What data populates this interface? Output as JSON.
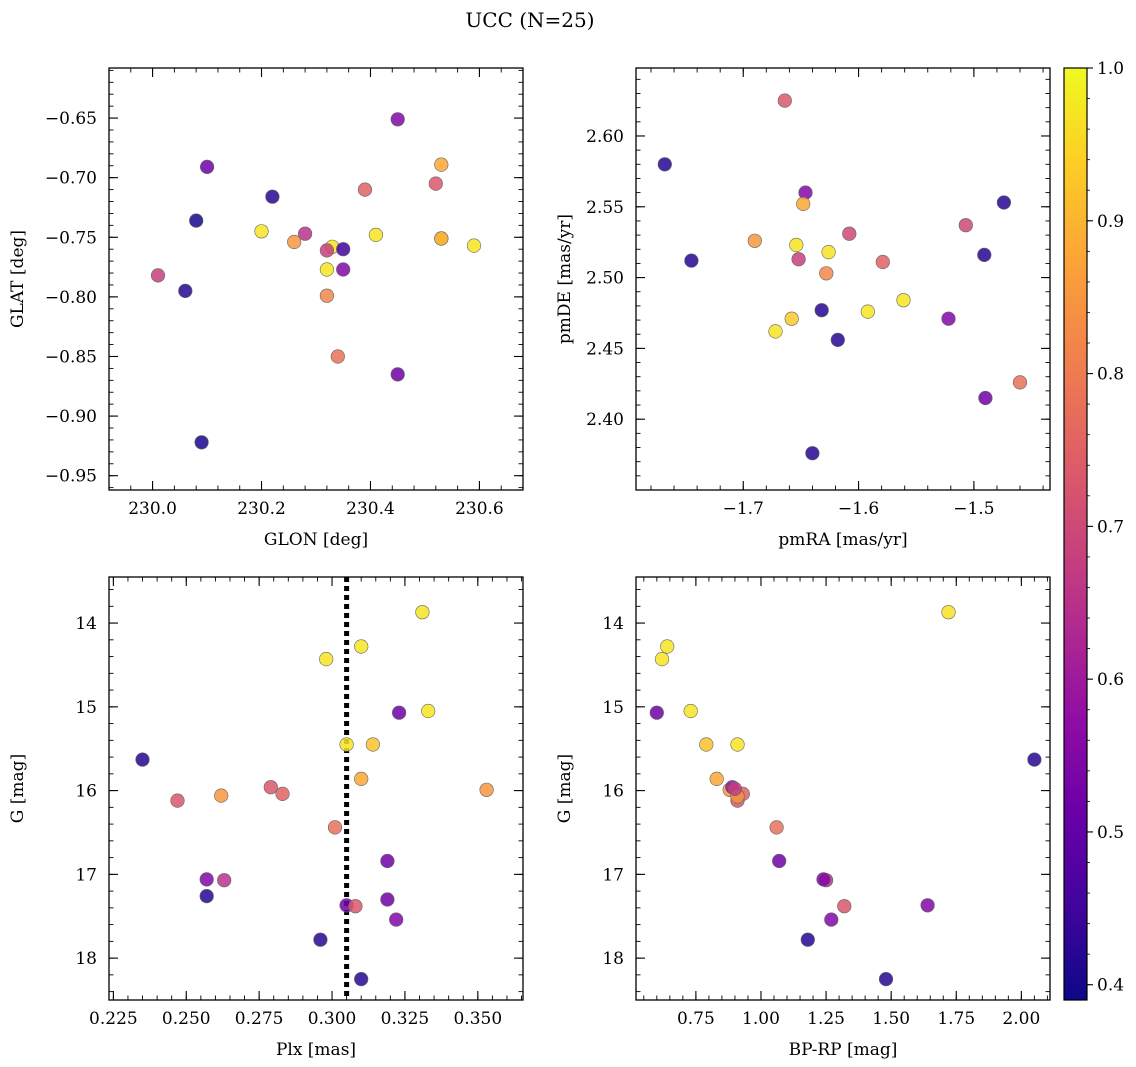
{
  "figure": {
    "title": "UCC (N=25)"
  },
  "colorbar": {
    "cmap": "plasma",
    "range": [
      0.39,
      1.0
    ],
    "ticks": [
      "0.4",
      "0.5",
      "0.6",
      "0.7",
      "0.8",
      "0.9",
      "1.0"
    ],
    "tick_values": [
      0.4,
      0.5,
      0.6,
      0.7,
      0.8,
      0.9,
      1.0
    ]
  },
  "chart_data": [
    {
      "type": "scatter",
      "xlabel": "GLON [deg]",
      "ylabel": "GLAT [deg]",
      "xlim": [
        229.92,
        230.68
      ],
      "ylim": [
        -0.962,
        -0.608
      ],
      "y_inverted": false,
      "xticks": [
        230.0,
        230.2,
        230.4,
        230.6
      ],
      "xticklabels": [
        "230.0",
        "230.2",
        "230.4",
        "230.6"
      ],
      "yticks": [
        -0.65,
        -0.7,
        -0.75,
        -0.8,
        -0.85,
        -0.9,
        -0.95
      ],
      "yticklabels": [
        "−0.65",
        "−0.70",
        "−0.75",
        "−0.80",
        "−0.85",
        "−0.90",
        "−0.95"
      ],
      "x": [
        230.45,
        230.1,
        230.53,
        230.22,
        230.39,
        230.52,
        230.08,
        230.41,
        230.2,
        230.28,
        230.26,
        230.33,
        230.32,
        230.53,
        230.59,
        230.35,
        230.01,
        230.32,
        230.35,
        230.06,
        230.32,
        230.34,
        230.45,
        230.09,
        230.53
      ],
      "y": [
        -0.651,
        -0.691,
        -0.689,
        -0.716,
        -0.71,
        -0.705,
        -0.736,
        -0.748,
        -0.745,
        -0.747,
        -0.754,
        -0.758,
        -0.761,
        -0.751,
        -0.757,
        -0.76,
        -0.782,
        -0.777,
        -0.777,
        -0.795,
        -0.799,
        -0.85,
        -0.865,
        -0.922,
        -0.751
      ],
      "c": [
        0.55,
        0.52,
        0.88,
        0.42,
        0.75,
        0.73,
        0.4,
        0.97,
        0.97,
        0.65,
        0.85,
        0.97,
        0.68,
        0.7,
        0.97,
        0.45,
        0.68,
        0.97,
        0.55,
        0.42,
        0.82,
        0.78,
        0.52,
        0.4,
        0.92
      ]
    },
    {
      "type": "scatter",
      "xlabel": "pmRA [mas/yr]",
      "ylabel": "pmDE [mas/yr]",
      "xlim": [
        -1.793,
        -1.434
      ],
      "ylim": [
        2.35,
        2.648
      ],
      "y_inverted": false,
      "xticks": [
        -1.7,
        -1.6,
        -1.5
      ],
      "xticklabels": [
        "−1.7",
        "−1.6",
        "−1.5"
      ],
      "yticks": [
        2.4,
        2.45,
        2.5,
        2.55,
        2.6
      ],
      "yticklabels": [
        "2.40",
        "2.45",
        "2.50",
        "2.55",
        "2.60"
      ],
      "x": [
        -1.664,
        -1.768,
        -1.646,
        -1.648,
        -1.474,
        -1.608,
        -1.507,
        -1.69,
        -1.654,
        -1.626,
        -1.745,
        -1.652,
        -1.579,
        -1.628,
        -1.491,
        -1.561,
        -1.592,
        -1.658,
        -1.632,
        -1.522,
        -1.672,
        -1.618,
        -1.46,
        -1.49,
        -1.64
      ],
      "y": [
        2.625,
        2.58,
        2.56,
        2.552,
        2.553,
        2.531,
        2.537,
        2.526,
        2.523,
        2.518,
        2.512,
        2.513,
        2.511,
        2.503,
        2.516,
        2.484,
        2.476,
        2.471,
        2.477,
        2.471,
        2.462,
        2.456,
        2.426,
        2.415,
        2.376
      ],
      "c": [
        0.73,
        0.42,
        0.55,
        0.88,
        0.42,
        0.7,
        0.7,
        0.85,
        0.97,
        0.97,
        0.42,
        0.68,
        0.75,
        0.82,
        0.42,
        0.97,
        0.97,
        0.93,
        0.42,
        0.55,
        0.97,
        0.42,
        0.78,
        0.52,
        0.42
      ]
    },
    {
      "type": "scatter",
      "xlabel": "Plx [mas]",
      "ylabel": "G [mag]",
      "xlim": [
        0.2235,
        0.3655
      ],
      "ylim": [
        18.5,
        13.45
      ],
      "y_inverted": true,
      "vline": 0.305,
      "xticks": [
        0.225,
        0.25,
        0.275,
        0.3,
        0.325,
        0.35
      ],
      "xticklabels": [
        "0.225",
        "0.250",
        "0.275",
        "0.300",
        "0.325",
        "0.350"
      ],
      "yticks": [
        14,
        15,
        16,
        17,
        18
      ],
      "yticklabels": [
        "14",
        "15",
        "16",
        "17",
        "18"
      ],
      "x": [
        0.331,
        0.31,
        0.298,
        0.323,
        0.333,
        0.305,
        0.314,
        0.235,
        0.31,
        0.353,
        0.262,
        0.283,
        0.279,
        0.247,
        0.301,
        0.319,
        0.257,
        0.263,
        0.257,
        0.305,
        0.308,
        0.319,
        0.322,
        0.296,
        0.31
      ],
      "y": [
        13.87,
        14.28,
        14.43,
        15.07,
        15.05,
        15.45,
        15.45,
        15.63,
        15.86,
        15.99,
        16.06,
        16.04,
        15.96,
        16.12,
        16.44,
        16.84,
        17.06,
        17.07,
        17.26,
        17.37,
        17.38,
        17.3,
        17.54,
        17.78,
        18.25
      ],
      "c": [
        0.97,
        0.97,
        0.97,
        0.52,
        0.97,
        0.97,
        0.92,
        0.42,
        0.88,
        0.85,
        0.85,
        0.75,
        0.73,
        0.73,
        0.78,
        0.52,
        0.55,
        0.65,
        0.42,
        0.52,
        0.73,
        0.52,
        0.55,
        0.42,
        0.42
      ]
    },
    {
      "type": "scatter",
      "xlabel": "BP-RP [mag]",
      "ylabel": "G [mag]",
      "xlim": [
        0.52,
        2.11
      ],
      "ylim": [
        18.5,
        13.45
      ],
      "y_inverted": true,
      "xticks": [
        0.75,
        1.0,
        1.25,
        1.5,
        1.75,
        2.0
      ],
      "xticklabels": [
        "0.75",
        "1.00",
        "1.25",
        "1.50",
        "1.75",
        "2.00"
      ],
      "yticks": [
        14,
        15,
        16,
        17,
        18
      ],
      "yticklabels": [
        "14",
        "15",
        "16",
        "17",
        "18"
      ],
      "x": [
        1.72,
        0.64,
        0.62,
        0.6,
        0.73,
        0.79,
        0.91,
        2.05,
        0.83,
        0.88,
        0.91,
        0.93,
        0.89,
        0.91,
        1.06,
        1.07,
        1.25,
        1.24,
        1.64,
        1.32,
        1.27,
        1.18,
        1.48,
        0.91,
        0.9
      ],
      "y": [
        13.87,
        14.28,
        14.43,
        15.07,
        15.05,
        15.45,
        15.45,
        15.63,
        15.86,
        15.99,
        16.06,
        16.04,
        15.96,
        16.12,
        16.44,
        16.84,
        17.07,
        17.06,
        17.37,
        17.38,
        17.54,
        17.78,
        18.25,
        16.07,
        15.98
      ],
      "c": [
        0.97,
        0.97,
        0.97,
        0.52,
        0.97,
        0.92,
        0.97,
        0.42,
        0.88,
        0.85,
        0.78,
        0.75,
        0.58,
        0.72,
        0.78,
        0.52,
        0.65,
        0.55,
        0.55,
        0.73,
        0.55,
        0.42,
        0.42,
        0.85,
        0.68
      ]
    }
  ]
}
